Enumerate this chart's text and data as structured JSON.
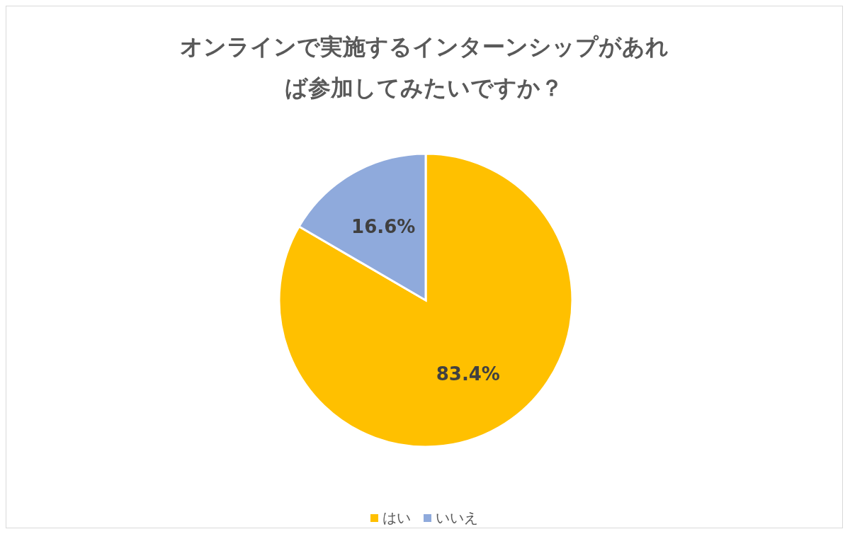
{
  "chart_data": {
    "type": "pie",
    "title": "オンラインで実施するインターンシップがあれば参加してみたいですか？",
    "categories": [
      "はい",
      "いいえ"
    ],
    "values": [
      83.4,
      16.6
    ],
    "colors": [
      "#ffc000",
      "#8faadc"
    ],
    "value_labels": [
      "83.4%",
      "16.6%"
    ],
    "legend": "bottom"
  }
}
